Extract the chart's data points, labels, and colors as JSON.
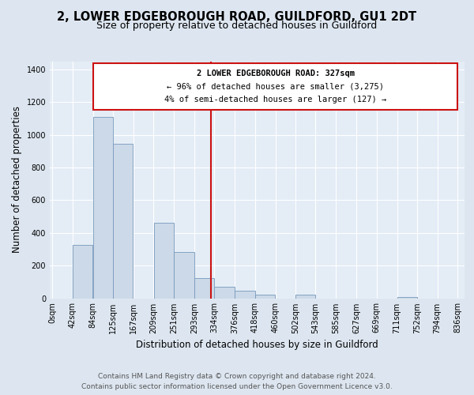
{
  "title1": "2, LOWER EDGEBOROUGH ROAD, GUILDFORD, GU1 2DT",
  "title2": "Size of property relative to detached houses in Guildford",
  "xlabel": "Distribution of detached houses by size in Guildford",
  "ylabel": "Number of detached properties",
  "bin_labels": [
    "0sqm",
    "42sqm",
    "84sqm",
    "125sqm",
    "167sqm",
    "209sqm",
    "251sqm",
    "293sqm",
    "334sqm",
    "376sqm",
    "418sqm",
    "460sqm",
    "502sqm",
    "543sqm",
    "585sqm",
    "627sqm",
    "669sqm",
    "711sqm",
    "752sqm",
    "794sqm",
    "836sqm"
  ],
  "bar_values": [
    0,
    325,
    1110,
    945,
    0,
    460,
    285,
    125,
    70,
    45,
    20,
    0,
    20,
    0,
    0,
    0,
    0,
    5,
    0,
    0
  ],
  "bar_color": "#ccd9e8",
  "bar_edge_color": "#7799bb",
  "property_line_x": 327,
  "annotation_title": "2 LOWER EDGEBOROUGH ROAD: 327sqm",
  "annotation_line1": "← 96% of detached houses are smaller (3,275)",
  "annotation_line2": "4% of semi-detached houses are larger (127) →",
  "annotation_box_color": "#ffffff",
  "annotation_box_edge": "#cc1111",
  "vline_color": "#cc1111",
  "ylim": [
    0,
    1450
  ],
  "yticks": [
    0,
    200,
    400,
    600,
    800,
    1000,
    1200,
    1400
  ],
  "footnote1": "Contains HM Land Registry data © Crown copyright and database right 2024.",
  "footnote2": "Contains public sector information licensed under the Open Government Licence v3.0.",
  "background_color": "#dde6f0",
  "plot_background": "#e4edf6",
  "title1_fontsize": 10.5,
  "title2_fontsize": 9,
  "axis_label_fontsize": 8.5,
  "tick_fontsize": 7,
  "footnote_fontsize": 6.5,
  "ann_fontsize": 7.5
}
